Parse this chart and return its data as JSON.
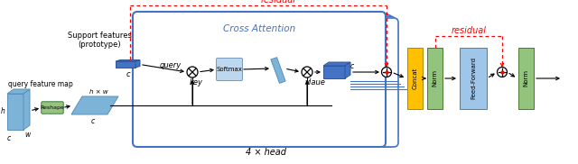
{
  "bg_color": "#ffffff",
  "blue_dark": "#4472C4",
  "blue_mid": "#6FA8DC",
  "blue_light": "#9FC5E8",
  "blue_lighter": "#BDD7EE",
  "cross_attn_border": "#4472C4",
  "softmax_fill": "#BDD7EE",
  "concat_fill": "#FFC000",
  "norm_fill": "#93C47D",
  "ffn_fill": "#9FC5E8",
  "reshape_fill": "#93C47D",
  "red_color": "#FF0000",
  "title_ca": "Cross Attention",
  "title_ca_color": "#4472C4",
  "label_residual": "residual",
  "label_4head": "4 × head",
  "text_query": "query",
  "text_key": "key",
  "text_value": "vlaue",
  "text_softmax": "Softmax",
  "text_concat": "Concat",
  "text_norm": "Norm",
  "text_ffn": "Feed-Forward",
  "text_reshape": "Reshape",
  "text_support": "Support features\n(prototype)",
  "text_query_map": "query feature map",
  "label_c": "c",
  "label_hw": "h × w",
  "label_h": "h",
  "label_w": "w"
}
